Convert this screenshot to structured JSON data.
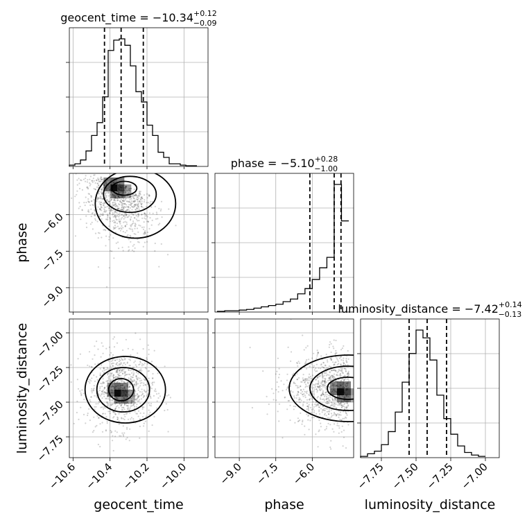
{
  "chart_data": {
    "type": "corner",
    "parameters": [
      "geocent_time",
      "phase",
      "luminosity_distance"
    ],
    "titles": [
      {
        "name": "geocent_time = −10.34",
        "sup": "+0.12",
        "sub": "−0.09"
      },
      {
        "name": "phase = −5.10",
        "sup": "+0.28",
        "sub": "−1.00"
      },
      {
        "name": "luminosity_distance = −7.42",
        "sup": "+0.14",
        "sub": "−0.13"
      }
    ],
    "axis_labels": [
      "geocent_time",
      "phase",
      "luminosity_distance"
    ],
    "ranges": [
      [
        -10.62,
        -9.87
      ],
      [
        -10.0,
        -4.3
      ],
      [
        -7.9,
        -6.9
      ]
    ],
    "ticks": [
      {
        "values": [
          -10.6,
          -10.4,
          -10.2,
          -10.0
        ],
        "labels": [
          "−10.6",
          "−10.4",
          "−10.2",
          "−10.0"
        ]
      },
      {
        "values": [
          -9.0,
          -7.5,
          -6.0
        ],
        "labels": [
          "−9.0",
          "−7.5",
          "−6.0"
        ]
      },
      {
        "values": [
          -7.75,
          -7.5,
          -7.25,
          -7.0
        ],
        "labels": [
          "−7.75",
          "−7.50",
          "−7.25",
          "−7.00"
        ]
      }
    ],
    "quantiles": [
      [
        -10.43,
        -10.34,
        -10.22
      ],
      [
        -6.1,
        -5.1,
        -4.82
      ],
      [
        -7.55,
        -7.42,
        -7.28
      ]
    ],
    "histograms": [
      {
        "bin_edges": [
          -10.62,
          -10.59,
          -10.56,
          -10.53,
          -10.5,
          -10.47,
          -10.44,
          -10.41,
          -10.38,
          -10.35,
          -10.32,
          -10.29,
          -10.26,
          -10.23,
          -10.2,
          -10.17,
          -10.14,
          -10.11,
          -10.08,
          -10.05,
          -10.02,
          -9.99,
          -9.96,
          -9.93
        ],
        "counts": [
          0.01,
          0.02,
          0.05,
          0.12,
          0.24,
          0.34,
          0.54,
          0.9,
          0.98,
          0.99,
          0.94,
          0.78,
          0.58,
          0.5,
          0.32,
          0.24,
          0.11,
          0.07,
          0.02,
          0.02,
          0.01,
          0.005,
          0.005
        ]
      },
      {
        "bin_edges": [
          -9.9,
          -9.6,
          -9.3,
          -9.0,
          -8.7,
          -8.4,
          -8.1,
          -7.8,
          -7.5,
          -7.2,
          -6.9,
          -6.6,
          -6.3,
          -6.0,
          -5.7,
          -5.4,
          -5.1,
          -4.8,
          -4.5
        ],
        "counts": [
          0.005,
          0.01,
          0.01,
          0.015,
          0.02,
          0.03,
          0.04,
          0.05,
          0.06,
          0.08,
          0.1,
          0.14,
          0.18,
          0.25,
          0.34,
          0.42,
          0.98,
          0.7
        ]
      },
      {
        "bin_edges": [
          -7.9,
          -7.85,
          -7.8,
          -7.75,
          -7.7,
          -7.65,
          -7.6,
          -7.55,
          -7.5,
          -7.45,
          -7.4,
          -7.35,
          -7.3,
          -7.25,
          -7.2,
          -7.15,
          -7.1,
          -7.05,
          -7.0
        ],
        "counts": [
          0.01,
          0.03,
          0.05,
          0.1,
          0.2,
          0.35,
          0.58,
          0.8,
          0.98,
          0.92,
          0.75,
          0.48,
          0.3,
          0.18,
          0.09,
          0.04,
          0.02,
          0.01
        ]
      }
    ],
    "scatter_2d": [
      {
        "x_param": "geocent_time",
        "y_param": "phase",
        "center": [
          -10.36,
          -5.0
        ],
        "spread": [
          0.1,
          0.9
        ]
      },
      {
        "x_param": "geocent_time",
        "y_param": "luminosity_distance",
        "center": [
          -10.34,
          -7.41
        ],
        "spread": [
          0.09,
          0.14
        ]
      },
      {
        "x_param": "phase",
        "y_param": "luminosity_distance",
        "center": [
          -5.6,
          -7.4
        ],
        "spread": [
          0.9,
          0.14
        ]
      }
    ]
  }
}
